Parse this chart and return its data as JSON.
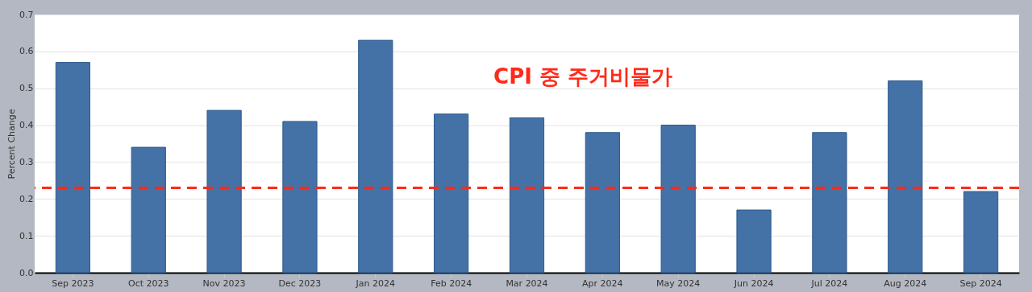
{
  "chart_data": {
    "type": "bar",
    "ylabel": "Percent Change",
    "categories": [
      "Sep 2023",
      "Oct 2023",
      "Nov 2023",
      "Dec 2023",
      "Jan 2024",
      "Feb 2024",
      "Mar 2024",
      "Apr 2024",
      "May 2024",
      "Jun 2024",
      "Jul 2024",
      "Aug 2024",
      "Sep 2024"
    ],
    "values": [
      0.57,
      0.34,
      0.44,
      0.41,
      0.63,
      0.43,
      0.42,
      0.38,
      0.4,
      0.17,
      0.38,
      0.52,
      0.22
    ],
    "color": "#4472a7",
    "ylim": [
      0,
      0.7
    ],
    "yticks": [
      {
        "value": 0,
        "label": "0.0"
      },
      0.1,
      0.2,
      0.3,
      0.4,
      0.5,
      0.6,
      0.7
    ],
    "grid": "y",
    "ref_lines": [
      {
        "axis": "y",
        "value": 0.23,
        "color": "#ff2a1a",
        "line_style": "dashed"
      }
    ],
    "annotations": [
      "CPI 중 주거비물가"
    ]
  }
}
